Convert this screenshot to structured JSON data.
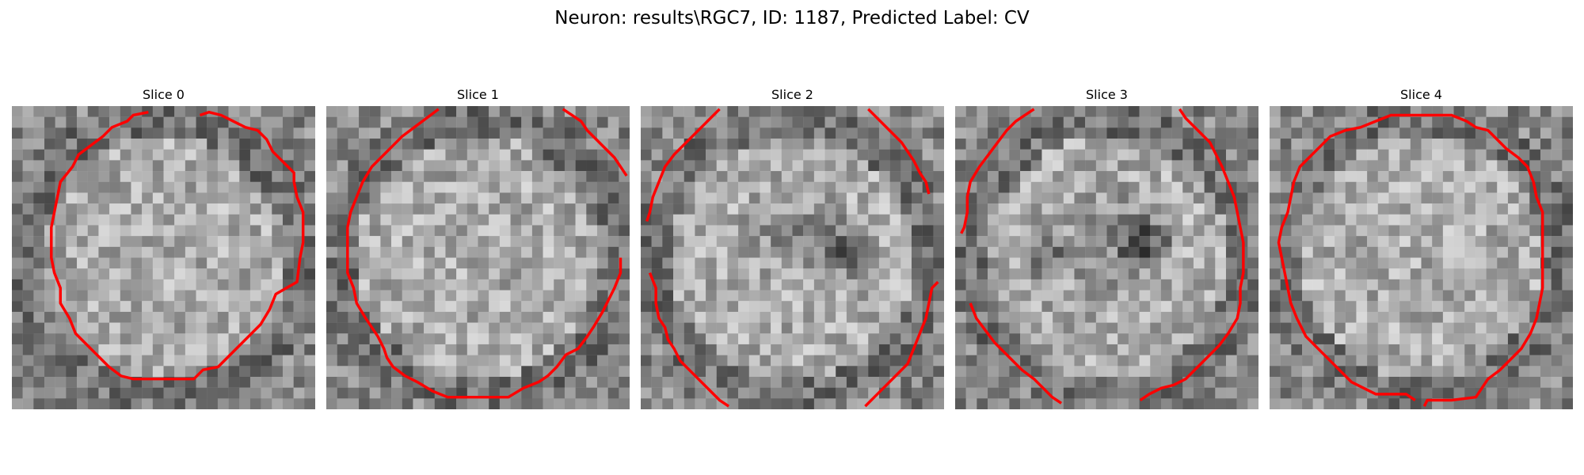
{
  "figure": {
    "title": "Neuron: results\\RGC7, ID: 1187, Predicted Label: CV"
  },
  "colors": {
    "contour": "#ff0000",
    "background": "#ffffff"
  },
  "panels": [
    {
      "title": "Slice 0"
    },
    {
      "title": "Slice 1"
    },
    {
      "title": "Slice 2"
    },
    {
      "title": "Slice 3"
    },
    {
      "title": "Slice 4"
    }
  ]
}
